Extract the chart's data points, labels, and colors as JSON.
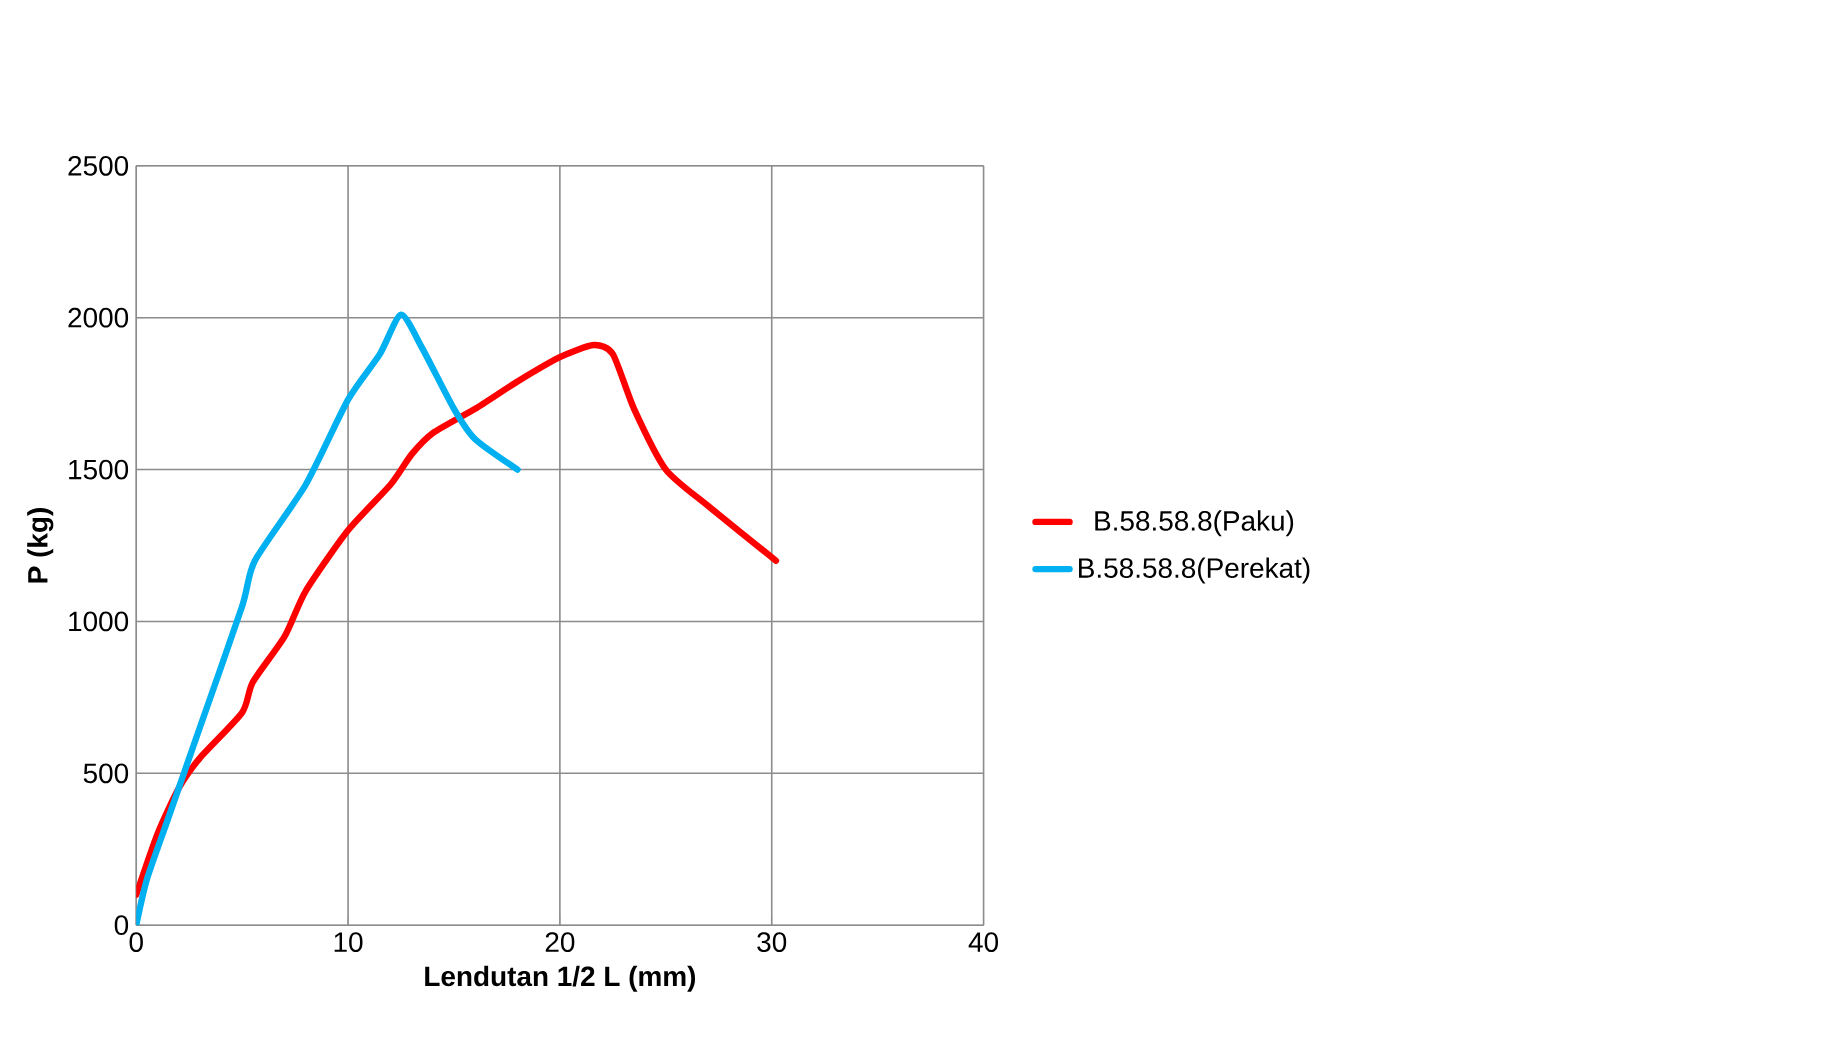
{
  "chart_data": {
    "type": "line",
    "xlabel": "Lendutan 1/2 L (mm)",
    "ylabel": "P (kg)",
    "xlim": [
      0,
      40
    ],
    "ylim": [
      0,
      2500
    ],
    "xticks": [
      0,
      10,
      20,
      30,
      40
    ],
    "yticks": [
      0,
      500,
      1000,
      1500,
      2000,
      2500
    ],
    "grid": true,
    "legend": "right",
    "marker": "none",
    "line_style": "solid",
    "series": [
      {
        "name": "B.58.58.8(Paku)",
        "color": "#ff0000",
        "x": [
          0,
          1,
          2,
          3,
          5,
          5.5,
          7,
          8,
          10,
          12,
          13,
          14,
          16,
          18,
          20,
          21.6,
          22.5,
          23.5,
          25,
          27,
          30.2
        ],
        "values": [
          100,
          300,
          450,
          550,
          700,
          800,
          950,
          1100,
          1300,
          1450,
          1550,
          1620,
          1700,
          1790,
          1870,
          1910,
          1880,
          1700,
          1500,
          1380,
          1200
        ]
      },
      {
        "name": "B.58.58.8(Perekat)",
        "color": "#00b0f0",
        "x": [
          0,
          0.5,
          1.5,
          3,
          5,
          5.6,
          8,
          10,
          11.5,
          12.5,
          13.5,
          15,
          16,
          18
        ],
        "values": [
          0,
          150,
          350,
          650,
          1050,
          1200,
          1450,
          1730,
          1880,
          2010,
          1900,
          1700,
          1600,
          1500
        ]
      }
    ]
  }
}
